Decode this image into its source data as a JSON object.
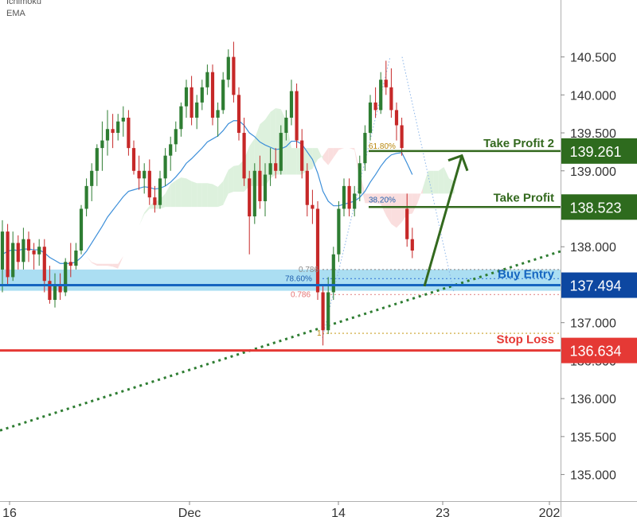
{
  "indicators": [
    "Ichimoku",
    "EMA"
  ],
  "colors": {
    "bull": "#2e7d32",
    "bear": "#c62828",
    "ema": "#3d8fd9",
    "cloud_bull": "#d7eed7",
    "cloud_bear": "#f9d8d8",
    "take_profit": "#33691e",
    "take_profit_tag": "#2e6b1e",
    "buy_entry": "#1565c0",
    "buy_zone": "#8fd3ee",
    "stop_loss": "#e53935",
    "trendline": "#2e7d32",
    "axis_text": "#333333"
  },
  "chart_data": {
    "type": "candlestick",
    "y_axis": {
      "ticks": [
        "140.500",
        "140.000",
        "139.500",
        "139.000",
        "138.000",
        "137.000",
        "136.000",
        "135.500",
        "135.000"
      ],
      "ylim": [
        134.65,
        141.25
      ]
    },
    "x_axis": {
      "ticks": [
        "16",
        "Dec",
        "14",
        "23",
        "202"
      ]
    },
    "levels": [
      {
        "label": "Take Profit 2",
        "price": 139.261,
        "price_label": "139.261",
        "fib_label": "61.80%"
      },
      {
        "label": "Take Profit",
        "price": 138.523,
        "price_label": "138.523",
        "fib_label": "38.20%"
      },
      {
        "label": "Buy Entry",
        "price": 137.494,
        "price_label": "137.494",
        "fib_label": "78.60%"
      },
      {
        "label": "Stop Loss",
        "price": 136.634,
        "price_label": "136.634"
      }
    ],
    "fib_labels": [
      "0.786",
      "0.786",
      "1"
    ],
    "buy_zone": [
      137.42,
      137.7
    ],
    "partially_hidden_tick": "136.500",
    "candles": [
      {
        "o": 137.7,
        "h": 138.35,
        "l": 137.4,
        "c": 138.2
      },
      {
        "o": 138.2,
        "h": 138.3,
        "l": 137.5,
        "c": 137.6
      },
      {
        "o": 137.6,
        "h": 138.2,
        "l": 137.55,
        "c": 138.05
      },
      {
        "o": 138.05,
        "h": 138.15,
        "l": 137.7,
        "c": 137.8
      },
      {
        "o": 137.8,
        "h": 138.25,
        "l": 137.7,
        "c": 138.1
      },
      {
        "o": 138.1,
        "h": 138.2,
        "l": 137.8,
        "c": 137.95
      },
      {
        "o": 137.95,
        "h": 138.05,
        "l": 137.7,
        "c": 137.9
      },
      {
        "o": 137.9,
        "h": 138.1,
        "l": 137.75,
        "c": 138.0
      },
      {
        "o": 138.0,
        "h": 138.1,
        "l": 137.4,
        "c": 137.55
      },
      {
        "o": 137.55,
        "h": 137.75,
        "l": 137.25,
        "c": 137.3
      },
      {
        "o": 137.3,
        "h": 137.65,
        "l": 137.2,
        "c": 137.5
      },
      {
        "o": 137.5,
        "h": 137.65,
        "l": 137.3,
        "c": 137.4
      },
      {
        "o": 137.4,
        "h": 137.85,
        "l": 137.35,
        "c": 137.8
      },
      {
        "o": 137.8,
        "h": 138.05,
        "l": 137.6,
        "c": 137.75
      },
      {
        "o": 137.75,
        "h": 138.05,
        "l": 137.7,
        "c": 137.95
      },
      {
        "o": 137.95,
        "h": 138.55,
        "l": 137.9,
        "c": 138.5
      },
      {
        "o": 138.5,
        "h": 138.9,
        "l": 138.4,
        "c": 138.8
      },
      {
        "o": 138.8,
        "h": 139.1,
        "l": 138.6,
        "c": 139.0
      },
      {
        "o": 139.0,
        "h": 139.35,
        "l": 138.8,
        "c": 139.3
      },
      {
        "o": 139.3,
        "h": 139.65,
        "l": 139.0,
        "c": 139.4
      },
      {
        "o": 139.4,
        "h": 139.8,
        "l": 139.2,
        "c": 139.55
      },
      {
        "o": 139.55,
        "h": 139.75,
        "l": 139.3,
        "c": 139.5
      },
      {
        "o": 139.5,
        "h": 139.75,
        "l": 139.4,
        "c": 139.65
      },
      {
        "o": 139.65,
        "h": 139.85,
        "l": 139.45,
        "c": 139.7
      },
      {
        "o": 139.7,
        "h": 139.8,
        "l": 139.2,
        "c": 139.3
      },
      {
        "o": 139.3,
        "h": 139.4,
        "l": 138.95,
        "c": 139.0
      },
      {
        "o": 139.0,
        "h": 139.2,
        "l": 138.75,
        "c": 138.9
      },
      {
        "o": 138.9,
        "h": 139.1,
        "l": 138.7,
        "c": 139.0
      },
      {
        "o": 139.0,
        "h": 139.15,
        "l": 138.55,
        "c": 138.65
      },
      {
        "o": 138.65,
        "h": 138.8,
        "l": 138.45,
        "c": 138.55
      },
      {
        "o": 138.55,
        "h": 139.0,
        "l": 138.5,
        "c": 138.9
      },
      {
        "o": 138.9,
        "h": 139.3,
        "l": 138.8,
        "c": 139.2
      },
      {
        "o": 139.2,
        "h": 139.45,
        "l": 139.0,
        "c": 139.35
      },
      {
        "o": 139.35,
        "h": 139.65,
        "l": 139.25,
        "c": 139.55
      },
      {
        "o": 139.55,
        "h": 139.9,
        "l": 139.45,
        "c": 139.85
      },
      {
        "o": 139.85,
        "h": 140.2,
        "l": 139.7,
        "c": 140.1
      },
      {
        "o": 140.1,
        "h": 140.25,
        "l": 139.6,
        "c": 139.7
      },
      {
        "o": 139.7,
        "h": 140.0,
        "l": 139.55,
        "c": 139.9
      },
      {
        "o": 139.9,
        "h": 140.2,
        "l": 139.8,
        "c": 140.1
      },
      {
        "o": 140.1,
        "h": 140.4,
        "l": 140.0,
        "c": 140.3
      },
      {
        "o": 140.3,
        "h": 140.4,
        "l": 139.6,
        "c": 139.7
      },
      {
        "o": 139.7,
        "h": 139.9,
        "l": 139.45,
        "c": 139.8
      },
      {
        "o": 139.8,
        "h": 140.3,
        "l": 139.75,
        "c": 140.2
      },
      {
        "o": 140.2,
        "h": 140.6,
        "l": 140.1,
        "c": 140.5
      },
      {
        "o": 140.5,
        "h": 140.7,
        "l": 139.9,
        "c": 140.0
      },
      {
        "o": 140.0,
        "h": 140.1,
        "l": 139.4,
        "c": 139.5
      },
      {
        "o": 139.5,
        "h": 139.7,
        "l": 138.8,
        "c": 138.9
      },
      {
        "o": 138.9,
        "h": 139.0,
        "l": 137.9,
        "c": 138.4
      },
      {
        "o": 138.4,
        "h": 139.1,
        "l": 138.3,
        "c": 139.0
      },
      {
        "o": 139.0,
        "h": 139.2,
        "l": 138.5,
        "c": 138.6
      },
      {
        "o": 138.6,
        "h": 139.1,
        "l": 138.4,
        "c": 138.95
      },
      {
        "o": 138.95,
        "h": 139.3,
        "l": 138.8,
        "c": 139.1
      },
      {
        "o": 139.1,
        "h": 139.3,
        "l": 138.9,
        "c": 139.0
      },
      {
        "o": 139.0,
        "h": 139.6,
        "l": 138.95,
        "c": 139.5
      },
      {
        "o": 139.5,
        "h": 139.8,
        "l": 139.4,
        "c": 139.7
      },
      {
        "o": 139.7,
        "h": 140.2,
        "l": 139.6,
        "c": 140.05
      },
      {
        "o": 140.05,
        "h": 140.15,
        "l": 139.3,
        "c": 139.4
      },
      {
        "o": 139.4,
        "h": 139.55,
        "l": 138.9,
        "c": 139.0
      },
      {
        "o": 139.0,
        "h": 139.1,
        "l": 138.4,
        "c": 138.55
      },
      {
        "o": 138.55,
        "h": 138.75,
        "l": 138.3,
        "c": 138.5
      },
      {
        "o": 138.5,
        "h": 138.6,
        "l": 137.3,
        "c": 137.4
      },
      {
        "o": 137.4,
        "h": 137.5,
        "l": 136.7,
        "c": 136.9
      },
      {
        "o": 136.9,
        "h": 137.6,
        "l": 136.85,
        "c": 137.4
      },
      {
        "o": 137.4,
        "h": 138.0,
        "l": 137.3,
        "c": 137.9
      },
      {
        "o": 137.9,
        "h": 138.6,
        "l": 137.8,
        "c": 138.5
      },
      {
        "o": 138.5,
        "h": 138.9,
        "l": 138.4,
        "c": 138.8
      },
      {
        "o": 138.8,
        "h": 138.9,
        "l": 138.4,
        "c": 138.5
      },
      {
        "o": 138.5,
        "h": 138.8,
        "l": 138.4,
        "c": 138.7
      },
      {
        "o": 138.7,
        "h": 139.2,
        "l": 138.6,
        "c": 139.1
      },
      {
        "o": 139.1,
        "h": 139.6,
        "l": 139.0,
        "c": 139.5
      },
      {
        "o": 139.5,
        "h": 140.0,
        "l": 139.4,
        "c": 139.9
      },
      {
        "o": 139.9,
        "h": 140.1,
        "l": 139.7,
        "c": 139.8
      },
      {
        "o": 139.8,
        "h": 140.3,
        "l": 139.75,
        "c": 140.2
      },
      {
        "o": 140.2,
        "h": 140.45,
        "l": 140.0,
        "c": 140.1
      },
      {
        "o": 140.1,
        "h": 140.35,
        "l": 139.7,
        "c": 139.8
      },
      {
        "o": 139.8,
        "h": 139.9,
        "l": 139.4,
        "c": 139.6
      },
      {
        "o": 139.6,
        "h": 139.7,
        "l": 139.2,
        "c": 139.3
      },
      {
        "o": 138.5,
        "h": 138.7,
        "l": 138.0,
        "c": 138.1
      },
      {
        "o": 138.1,
        "h": 138.25,
        "l": 137.85,
        "c": 137.95
      }
    ],
    "ema": [
      137.9,
      137.94,
      137.96,
      137.95,
      137.97,
      137.97,
      137.96,
      137.96,
      137.92,
      137.86,
      137.82,
      137.78,
      137.78,
      137.78,
      137.8,
      137.86,
      137.94,
      138.05,
      138.16,
      138.27,
      138.39,
      138.48,
      138.57,
      138.66,
      138.73,
      138.75,
      138.77,
      138.79,
      138.78,
      138.76,
      138.77,
      138.8,
      138.85,
      138.92,
      139.0,
      139.1,
      139.16,
      139.23,
      139.3,
      139.38,
      139.42,
      139.46,
      139.53,
      139.62,
      139.66,
      139.66,
      139.6,
      139.5,
      139.45,
      139.38,
      139.34,
      139.31,
      139.28,
      139.29,
      139.32,
      139.39,
      139.39,
      139.35,
      139.25,
      139.15,
      138.97,
      138.73,
      138.6,
      138.54,
      138.54,
      138.56,
      138.58,
      138.6,
      138.65,
      138.73,
      138.85,
      138.95,
      139.06,
      139.15,
      139.21,
      139.23,
      139.24,
      139.1,
      138.95
    ]
  }
}
